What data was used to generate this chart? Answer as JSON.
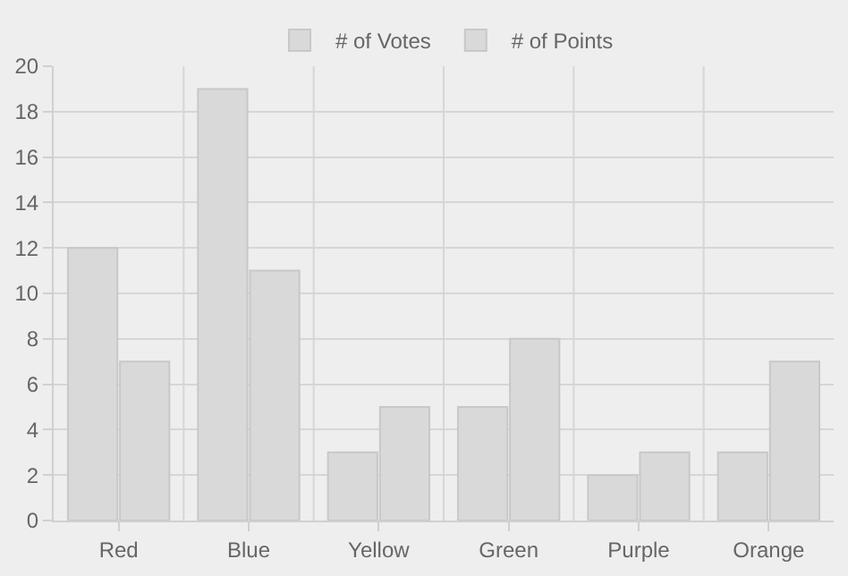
{
  "chart_data": {
    "type": "bar",
    "categories": [
      "Red",
      "Blue",
      "Yellow",
      "Green",
      "Purple",
      "Orange"
    ],
    "series": [
      {
        "name": "# of Votes",
        "color": "#d9d9d9",
        "values": [
          12,
          19,
          3,
          5,
          2,
          3
        ]
      },
      {
        "name": "# of Points",
        "color": "#d9d9d9",
        "values": [
          7,
          11,
          5,
          8,
          3,
          7
        ]
      }
    ],
    "ylim": [
      0,
      20
    ],
    "yticks": [
      0,
      2,
      4,
      6,
      8,
      10,
      12,
      14,
      16,
      18,
      20
    ],
    "grid": true,
    "legend": "top"
  }
}
